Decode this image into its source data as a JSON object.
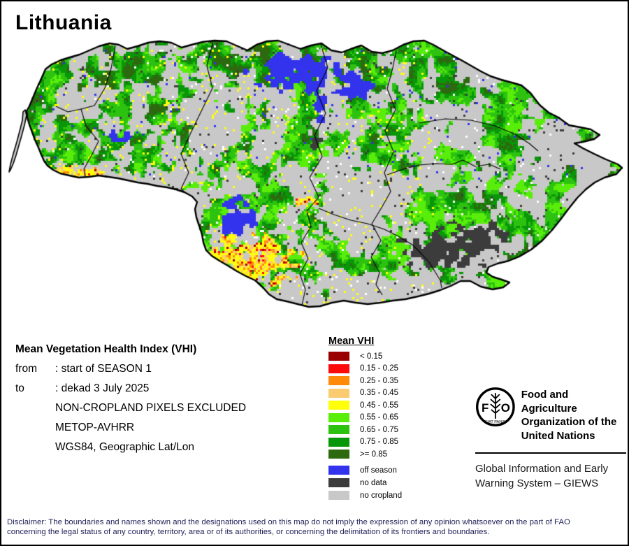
{
  "title": "Lithuania",
  "info": {
    "heading": "Mean Vegetation Health Index (VHI)",
    "rows": [
      {
        "label": "from",
        "value": ": start of SEASON 1"
      },
      {
        "label": "to",
        "value": ": dekad 3 July 2025"
      },
      {
        "label": "",
        "value": "NON-CROPLAND PIXELS EXCLUDED"
      },
      {
        "label": "",
        "value": "METOP-AVHRR"
      },
      {
        "label": "",
        "value": "WGS84, Geographic Lat/Lon"
      }
    ]
  },
  "legend": {
    "title": "Mean VHI",
    "classes": [
      {
        "label": "< 0.15",
        "color": "#9B0000"
      },
      {
        "label": "0.15 - 0.25",
        "color": "#FF0A0A"
      },
      {
        "label": "0.25 - 0.35",
        "color": "#FF8A0A"
      },
      {
        "label": "0.35 - 0.45",
        "color": "#FBCB72"
      },
      {
        "label": "0.45 - 0.55",
        "color": "#FFFF0A"
      },
      {
        "label": "0.55 - 0.65",
        "color": "#58EE0A"
      },
      {
        "label": "0.65 - 0.75",
        "color": "#2DC20F"
      },
      {
        "label": "0.75 - 0.85",
        "color": "#089708"
      },
      {
        "label": ">= 0.85",
        "color": "#2D6A0F"
      }
    ],
    "extra_classes": [
      {
        "label": "off season",
        "color": "#3333EE"
      },
      {
        "label": "no data",
        "color": "#3C3C3C"
      },
      {
        "label": "no cropland",
        "color": "#C8C8C8"
      }
    ]
  },
  "fao": {
    "logo": {
      "left_letter": "F",
      "right_letter": "O",
      "motto": "FIAT PANIS"
    },
    "org_lines": [
      "Food and Agriculture",
      "Organization of the",
      "United Nations"
    ],
    "giews_lines": [
      "Global Information and Early",
      "Warning System – GIEWS"
    ]
  },
  "disclaimer": {
    "lines": [
      "Disclaimer: The boundaries and names shown and the designations used on this map do not imply the expression of any opinion whatsoever on the part of FAO",
      "concerning the legal status of any country, territory, area or of its authorities, or concerning the delimitation of its frontiers and boundaries."
    ]
  },
  "map": {
    "region": "Lithuania",
    "no_cropland_color": "#C8C8C8",
    "border_color": "#000000"
  }
}
